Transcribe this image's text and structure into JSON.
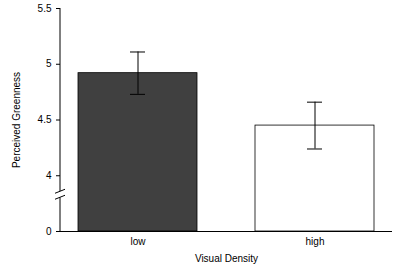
{
  "chart_data": {
    "type": "bar",
    "x_label": "Visual Density",
    "y_label": "Perceived Greenness",
    "categories": [
      "low",
      "high"
    ],
    "values": [
      4.92,
      4.45
    ],
    "error_low": [
      4.73,
      4.24
    ],
    "error_high": [
      5.11,
      4.66
    ],
    "colors": [
      "#404040",
      "#ffffff"
    ],
    "ylim": [
      0,
      5.5
    ],
    "yticks": [
      0,
      4,
      4.5,
      5,
      5.5
    ],
    "grid": false
  }
}
